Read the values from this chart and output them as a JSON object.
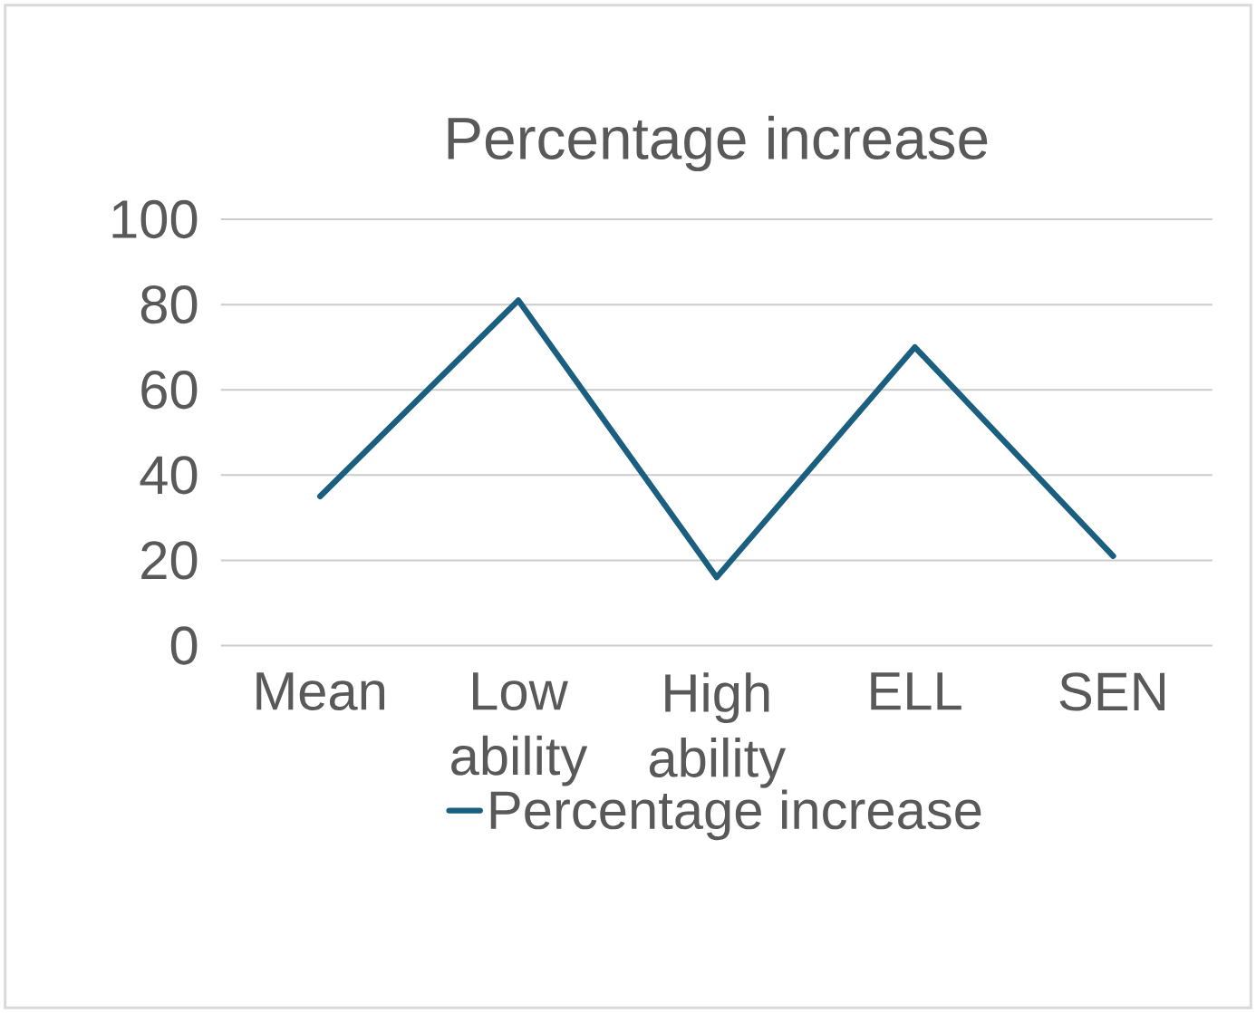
{
  "chart_data": {
    "type": "line",
    "title": "Percentage increase",
    "categories": [
      "Mean",
      "Low ability",
      "High ability",
      "ELL",
      "SEN"
    ],
    "series": [
      {
        "name": "Percentage increase",
        "color": "#1a5f7f",
        "values": [
          35,
          81,
          16,
          70,
          21
        ]
      }
    ],
    "ylim": [
      0,
      100
    ],
    "yticks": [
      0,
      20,
      40,
      60,
      80,
      100
    ],
    "grid": "y",
    "legend": "bottom",
    "marker": "none",
    "line_style": "solid"
  }
}
